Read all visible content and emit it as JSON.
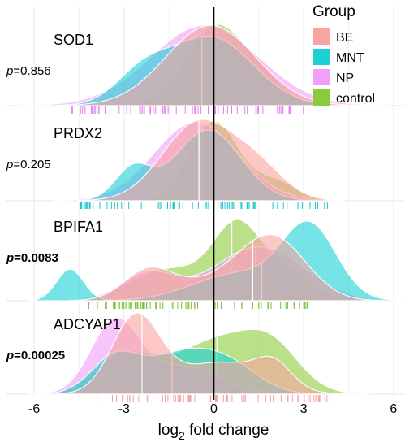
{
  "chart_data": {
    "type": "area",
    "subtype": "ridgeline-density",
    "xlabel_base": "log",
    "xlabel_sub": "2",
    "xlabel_rest": " fold change",
    "xlim": [
      -6.6,
      6.6
    ],
    "xticks": [
      -6,
      -3,
      0,
      3,
      6
    ],
    "xtick_labels": [
      "-6",
      "-3",
      "0",
      "3",
      "6"
    ],
    "reference_line_x": 0,
    "grid": true,
    "legend": {
      "title": "Group",
      "placement": "top-right",
      "entries": [
        {
          "name": "BE",
          "color": "#F8A4A0"
        },
        {
          "name": "MNT",
          "color": "#1BD1D6"
        },
        {
          "name": "NP",
          "color": "#F0A0F8"
        },
        {
          "name": "control",
          "color": "#8CCB3C"
        }
      ]
    },
    "rows": [
      {
        "gene": "SOD1",
        "p_prefix": "p",
        "p_value": "=0.856",
        "p_bold": false,
        "rug_color": "#E27CF0",
        "groups": {
          "BE": {
            "median": 0.0,
            "components": [
              [
                -0.1,
                1.5,
                1.0
              ]
            ]
          },
          "MNT": {
            "median": -0.4,
            "components": [
              [
                -2.4,
                0.9,
                0.35
              ],
              [
                -0.1,
                1.4,
                0.85
              ]
            ]
          },
          "NP": {
            "median": -0.3,
            "components": [
              [
                -0.3,
                1.8,
                1.0
              ]
            ]
          },
          "control": {
            "median": 0.1,
            "components": [
              [
                0.1,
                1.0,
                1.0
              ],
              [
                1.8,
                0.7,
                0.2
              ]
            ]
          }
        }
      },
      {
        "gene": "PRDX2",
        "p_prefix": "p",
        "p_value": "=0.205",
        "p_bold": false,
        "rug_color": "#18C8CE",
        "groups": {
          "BE": {
            "median": -0.5,
            "components": [
              [
                -0.5,
                1.2,
                1.0
              ],
              [
                1.5,
                0.9,
                0.35
              ]
            ]
          },
          "MNT": {
            "median": -0.5,
            "components": [
              [
                -2.7,
                0.6,
                0.4
              ],
              [
                -0.2,
                1.1,
                0.9
              ]
            ]
          },
          "NP": {
            "median": -0.4,
            "components": [
              [
                -0.6,
                1.4,
                1.0
              ]
            ]
          },
          "control": {
            "median": 0.0,
            "components": [
              [
                0.0,
                0.8,
                1.0
              ],
              [
                2.0,
                0.8,
                0.25
              ]
            ]
          }
        }
      },
      {
        "gene": "BPIFA1",
        "p_prefix": "p",
        "p_value": "=0.0083",
        "p_bold": true,
        "rug_color": "#7CC23A",
        "groups": {
          "BE": {
            "median": 1.3,
            "components": [
              [
                -2.2,
                0.8,
                0.3
              ],
              [
                2.0,
                1.1,
                0.65
              ],
              [
                0.0,
                1.5,
                0.2
              ]
            ]
          },
          "MNT": {
            "median": 1.6,
            "components": [
              [
                -4.8,
                0.45,
                0.35
              ],
              [
                3.2,
                0.9,
                0.8
              ],
              [
                0.8,
                1.5,
                0.3
              ]
            ]
          },
          "NP": {
            "median": 1.4,
            "components": [
              [
                -2.2,
                0.9,
                0.3
              ],
              [
                1.5,
                1.5,
                0.6
              ]
            ]
          },
          "control": {
            "median": 0.6,
            "components": [
              [
                -1.5,
                1.3,
                0.35
              ],
              [
                0.8,
                0.8,
                0.8
              ],
              [
                2.5,
                0.8,
                0.3
              ]
            ]
          }
        }
      },
      {
        "gene": "ADCYAP1",
        "p_prefix": "p",
        "p_value": "=0.00025",
        "p_bold": true,
        "rug_color": "#F4A0A0",
        "groups": {
          "BE": {
            "median": -2.4,
            "components": [
              [
                -2.6,
                0.8,
                0.85
              ],
              [
                0.2,
                1.4,
                0.35
              ],
              [
                2.0,
                0.6,
                0.25
              ]
            ]
          },
          "MNT": {
            "median": -1.4,
            "components": [
              [
                -3.3,
                0.8,
                0.4
              ],
              [
                -1.2,
                1.1,
                0.4
              ],
              [
                0.5,
                1.0,
                0.3
              ]
            ]
          },
          "NP": {
            "median": -2.6,
            "components": [
              [
                -3.3,
                0.8,
                0.8
              ],
              [
                -1.0,
                1.2,
                0.3
              ]
            ]
          },
          "control": {
            "median": 0.1,
            "components": [
              [
                -3.0,
                1.0,
                0.4
              ],
              [
                0.2,
                1.5,
                0.6
              ],
              [
                2.0,
                0.9,
                0.35
              ]
            ]
          }
        }
      }
    ]
  }
}
